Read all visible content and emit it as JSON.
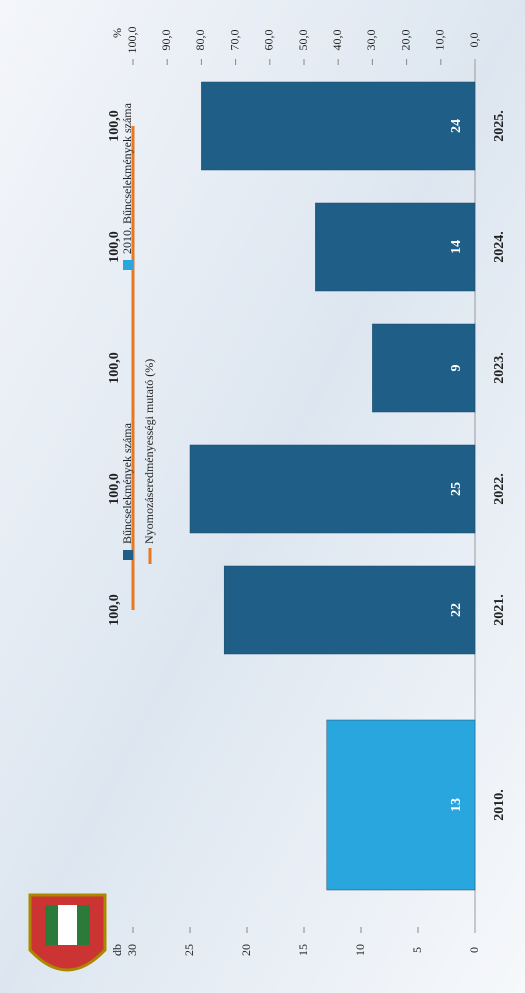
{
  "chart_data": {
    "type": "bar",
    "categories": [
      "2010.",
      "2021.",
      "2022.",
      "2023.",
      "2024.",
      "2025."
    ],
    "series": [
      {
        "name": "Bűncselekmények száma",
        "type": "bar",
        "color": "#1f5f87",
        "values": [
          null,
          22,
          25,
          9,
          14,
          24
        ]
      },
      {
        "name": "Nyomozáseredményességi mutató (%)",
        "type": "line",
        "axis": "y2",
        "color": "#e87722",
        "values": [
          null,
          100,
          100,
          100,
          100,
          100
        ],
        "value_labels": [
          null,
          "100,0",
          "100,0",
          "100,0",
          "100,0",
          "100,0"
        ]
      },
      {
        "name": "2010. Bűncselekmények száma",
        "type": "bar",
        "color": "#2aa6df",
        "values": [
          13,
          null,
          null,
          null,
          null,
          null
        ]
      }
    ],
    "ylabel": "db",
    "ylim": [
      0,
      30
    ],
    "yticks": [
      0,
      5,
      10,
      15,
      20,
      25,
      30
    ],
    "y2label": "%",
    "y2lim": [
      0,
      100
    ],
    "y2ticks": [
      {
        "value": 0,
        "label": "0,0"
      },
      {
        "value": 10,
        "label": "10,0"
      },
      {
        "value": 20,
        "label": "20,0"
      },
      {
        "value": 30,
        "label": "30,0"
      },
      {
        "value": 40,
        "label": "40,0"
      },
      {
        "value": 50,
        "label": "50,0"
      },
      {
        "value": 60,
        "label": "60,0"
      },
      {
        "value": 70,
        "label": "70,0"
      },
      {
        "value": 80,
        "label": "80,0"
      },
      {
        "value": 90,
        "label": "90,0"
      },
      {
        "value": 100,
        "label": "100,0"
      }
    ],
    "grid": false
  }
}
